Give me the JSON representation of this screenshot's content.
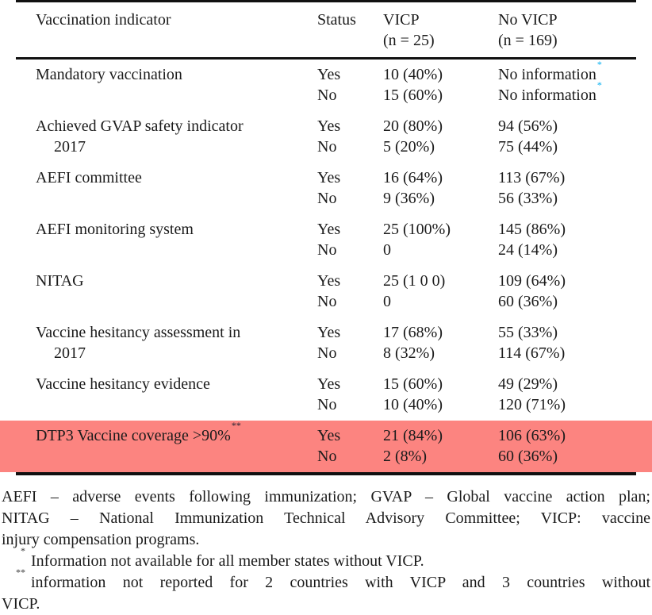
{
  "colors": {
    "highlight_row": "#fc8480",
    "footnote_marker_blue": "#00aeef",
    "rule_black": "#111111"
  },
  "table": {
    "header": {
      "indicator": "Vaccination indicator",
      "status": "Status",
      "vicp_line1": "VICP",
      "vicp_line2": "(n = 25)",
      "no_vicp_line1": "No VICP",
      "no_vicp_line2": "(n = 169)"
    },
    "rows": [
      {
        "indicator": "Mandatory vaccination",
        "status_yes": "Yes",
        "status_no": "No",
        "vicp_yes": "10 (40%)",
        "vicp_no": "15 (60%)",
        "no_vicp_yes": "No information",
        "no_vicp_yes_sup": "*",
        "no_vicp_no": "No information",
        "no_vicp_no_sup": "*"
      },
      {
        "indicator": "Achieved GVAP safety indicator",
        "indicator_line2": "2017",
        "status_yes": "Yes",
        "status_no": "No",
        "vicp_yes": "20 (80%)",
        "vicp_no": "5 (20%)",
        "no_vicp_yes": "94 (56%)",
        "no_vicp_no": "75 (44%)"
      },
      {
        "indicator": "AEFI committee",
        "status_yes": "Yes",
        "status_no": "No",
        "vicp_yes": "16 (64%)",
        "vicp_no": "9 (36%)",
        "no_vicp_yes": "113 (67%)",
        "no_vicp_no": "56 (33%)"
      },
      {
        "indicator": "AEFI monitoring system",
        "status_yes": "Yes",
        "status_no": "No",
        "vicp_yes": "25 (100%)",
        "vicp_no": "0",
        "no_vicp_yes": "145 (86%)",
        "no_vicp_no": "24 (14%)"
      },
      {
        "indicator": "NITAG",
        "status_yes": "Yes",
        "status_no": "No",
        "vicp_yes": "25 (1 0 0)",
        "vicp_no": "0",
        "no_vicp_yes": "109 (64%)",
        "no_vicp_no": "60 (36%)"
      },
      {
        "indicator": "Vaccine hesitancy assessment in",
        "indicator_line2": "2017",
        "status_yes": "Yes",
        "status_no": "No",
        "vicp_yes": "17 (68%)",
        "vicp_no": "8 (32%)",
        "no_vicp_yes": "55 (33%)",
        "no_vicp_no": "114 (67%)"
      },
      {
        "indicator": "Vaccine hesitancy evidence",
        "status_yes": "Yes",
        "status_no": "No",
        "vicp_yes": "15 (60%)",
        "vicp_no": "10 (40%)",
        "no_vicp_yes": "49 (29%)",
        "no_vicp_no": "120 (71%)"
      },
      {
        "indicator": "DTP3 Vaccine coverage >90%",
        "indicator_sup": "**",
        "status_yes": "Yes",
        "status_no": "No",
        "vicp_yes": "21 (84%)",
        "vicp_no": "2 (8%)",
        "no_vicp_yes": "106 (63%)",
        "no_vicp_no": "60 (36%)",
        "highlighted": true
      }
    ]
  },
  "footnotes": {
    "abbreviation_line1": "AEFI – adverse events following immunization; GVAP – Global vaccine action plan;",
    "abbreviation_line2": "NITAG – National Immunization Technical Advisory Committee; VICP: vaccine",
    "abbreviation_line3": "injury compensation programs.",
    "star_marker": "*",
    "star_text": "Information not available for all member states without VICP.",
    "double_star_marker": "**",
    "double_star_line1": "information not reported for 2 countries with VICP and 3 countries without",
    "double_star_line2": "VICP."
  }
}
